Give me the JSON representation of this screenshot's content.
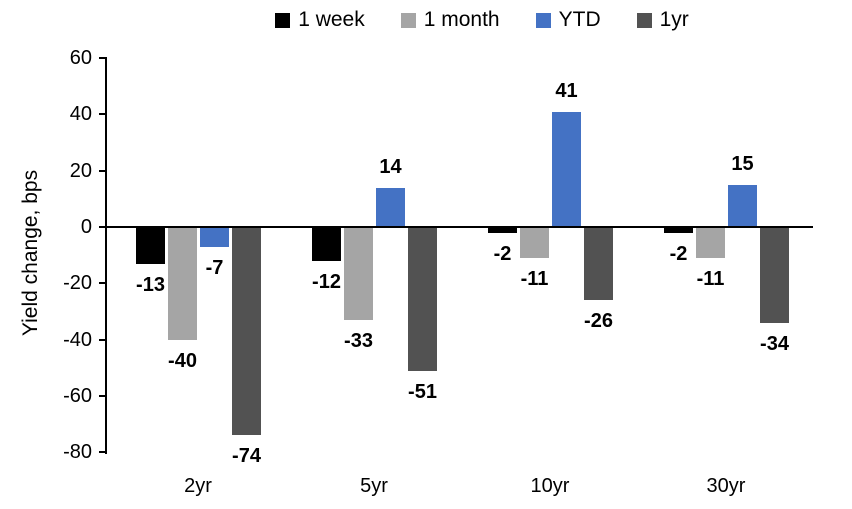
{
  "chart_data": {
    "type": "bar",
    "title": "",
    "xlabel": "",
    "ylabel": "Yield change, bps",
    "categories": [
      "2yr",
      "5yr",
      "10yr",
      "30yr"
    ],
    "series": [
      {
        "name": "1 week",
        "color": "#000000",
        "values": [
          -13,
          -12,
          -2,
          -2
        ]
      },
      {
        "name": "1 month",
        "color": "#A5A5A5",
        "values": [
          -40,
          -33,
          -11,
          -11
        ]
      },
      {
        "name": "YTD",
        "color": "#4472C4",
        "values": [
          -7,
          14,
          41,
          15
        ]
      },
      {
        "name": "1yr",
        "color": "#525252",
        "values": [
          -74,
          -51,
          -26,
          -34
        ]
      }
    ],
    "ylim": [
      -80,
      60
    ],
    "yticks": [
      60,
      40,
      20,
      0,
      -20,
      -40,
      -60,
      -80
    ],
    "grid": false,
    "legend_position": "top",
    "data_labels": true,
    "axis_color": "#000000"
  }
}
